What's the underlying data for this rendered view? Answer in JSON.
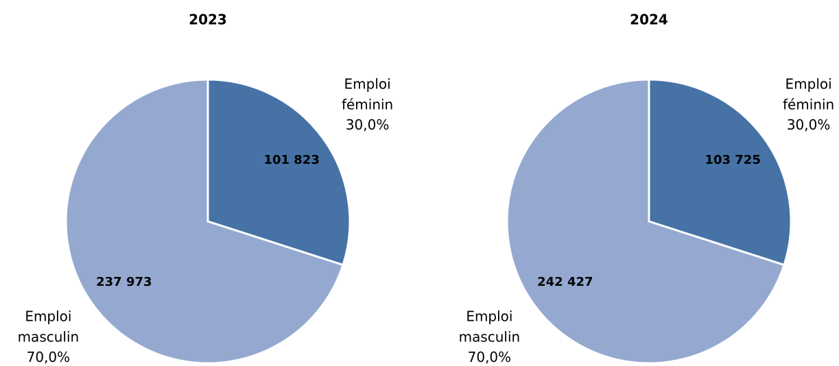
{
  "chart_data": [
    {
      "type": "pie",
      "title": "2023",
      "categories": [
        "Emploi féminin",
        "Emploi masculin"
      ],
      "values": [
        101823,
        237973
      ],
      "value_labels": [
        "101 823",
        "237 973"
      ],
      "percent_labels": [
        "30,0%",
        "70,0%"
      ],
      "colors": [
        "#4672a6",
        "#95a9d0"
      ]
    },
    {
      "type": "pie",
      "title": "2024",
      "categories": [
        "Emploi féminin",
        "Emploi masculin"
      ],
      "values": [
        103725,
        242427
      ],
      "value_labels": [
        "103 725",
        "242 427"
      ],
      "percent_labels": [
        "30,0%",
        "70,0%"
      ],
      "colors": [
        "#4672a6",
        "#95a9d0"
      ]
    }
  ]
}
